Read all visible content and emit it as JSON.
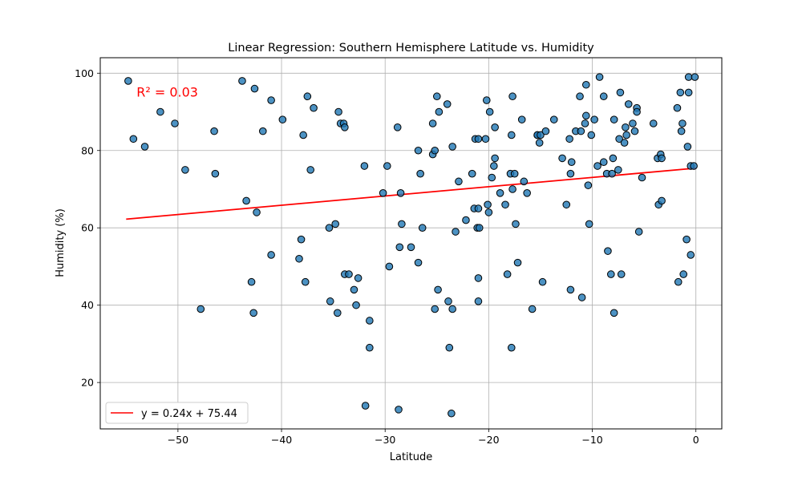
{
  "chart_data": {
    "type": "scatter",
    "title": "Linear Regression: Southern Hemisphere Latitude vs. Humidity",
    "xlabel": "Latitude",
    "ylabel": "Humidity (%)",
    "xlim": [
      -57.5,
      2.5
    ],
    "ylim": [
      8,
      104
    ],
    "xticks": [
      -50,
      -40,
      -30,
      -20,
      -10,
      0
    ],
    "xtick_labels": [
      "−50",
      "−40",
      "−30",
      "−20",
      "−10",
      "0"
    ],
    "yticks": [
      20,
      40,
      60,
      80,
      100
    ],
    "ytick_labels": [
      "20",
      "40",
      "60",
      "80",
      "100"
    ],
    "grid": true,
    "annotation": "R² = 0.03",
    "annotation_at": [
      -54,
      95
    ],
    "legend": {
      "placement": "lower-left",
      "entries": [
        "y = 0.24x + 75.44"
      ]
    },
    "regression": {
      "slope": 0.24,
      "intercept": 75.44,
      "x_range": [
        -55,
        0
      ],
      "label": "y = 0.24x + 75.44"
    },
    "colors": {
      "point_fill": "#1f77b4",
      "point_edge": "#000000",
      "line": "#ff0000",
      "grid": "#b0b0b0",
      "annotation": "#ff0000"
    },
    "points": [
      [
        -54.8,
        98
      ],
      [
        -54.3,
        83
      ],
      [
        -53.2,
        81
      ],
      [
        -51.7,
        90
      ],
      [
        -50.3,
        87
      ],
      [
        -49.3,
        75
      ],
      [
        -47.8,
        39
      ],
      [
        -46.5,
        85
      ],
      [
        -46.4,
        74
      ],
      [
        -43.8,
        98
      ],
      [
        -43.4,
        67
      ],
      [
        -42.9,
        46
      ],
      [
        -42.7,
        38
      ],
      [
        -42.6,
        96
      ],
      [
        -42.4,
        64
      ],
      [
        -41.8,
        85
      ],
      [
        -41.0,
        93
      ],
      [
        -41.0,
        53
      ],
      [
        -39.9,
        88
      ],
      [
        -38.3,
        52
      ],
      [
        -38.1,
        57
      ],
      [
        -37.9,
        84
      ],
      [
        -37.7,
        46
      ],
      [
        -37.5,
        94
      ],
      [
        -37.2,
        75
      ],
      [
        -36.9,
        91
      ],
      [
        -35.4,
        60
      ],
      [
        -35.3,
        41
      ],
      [
        -34.8,
        61
      ],
      [
        -34.6,
        38
      ],
      [
        -34.5,
        90
      ],
      [
        -34.3,
        87
      ],
      [
        -34.0,
        87
      ],
      [
        -33.9,
        48
      ],
      [
        -33.9,
        86
      ],
      [
        -33.5,
        48
      ],
      [
        -33.0,
        44
      ],
      [
        -32.8,
        40
      ],
      [
        -32.6,
        47
      ],
      [
        -32.0,
        76
      ],
      [
        -31.9,
        14
      ],
      [
        -31.5,
        36
      ],
      [
        -31.5,
        29
      ],
      [
        -30.2,
        69
      ],
      [
        -29.8,
        76
      ],
      [
        -29.6,
        50
      ],
      [
        -28.8,
        86
      ],
      [
        -28.7,
        13
      ],
      [
        -28.6,
        55
      ],
      [
        -28.5,
        69
      ],
      [
        -28.4,
        61
      ],
      [
        -27.5,
        55
      ],
      [
        -26.8,
        80
      ],
      [
        -26.8,
        51
      ],
      [
        -26.6,
        74
      ],
      [
        -26.4,
        60
      ],
      [
        -25.4,
        79
      ],
      [
        -25.4,
        87
      ],
      [
        -25.2,
        39
      ],
      [
        -25.2,
        80
      ],
      [
        -25.0,
        94
      ],
      [
        -24.8,
        90
      ],
      [
        -24.9,
        44
      ],
      [
        -24.0,
        92
      ],
      [
        -23.9,
        41
      ],
      [
        -23.8,
        29
      ],
      [
        -23.6,
        12
      ],
      [
        -23.5,
        81
      ],
      [
        -23.5,
        39
      ],
      [
        -23.2,
        59
      ],
      [
        -22.9,
        72
      ],
      [
        -22.2,
        62
      ],
      [
        -21.6,
        74
      ],
      [
        -21.4,
        65
      ],
      [
        -21.3,
        83
      ],
      [
        -21.1,
        60
      ],
      [
        -21.0,
        65
      ],
      [
        -21.0,
        83
      ],
      [
        -21.0,
        41
      ],
      [
        -21.0,
        47
      ],
      [
        -20.9,
        60
      ],
      [
        -20.3,
        83
      ],
      [
        -20.2,
        93
      ],
      [
        -20.1,
        66
      ],
      [
        -20.0,
        64
      ],
      [
        -19.9,
        90
      ],
      [
        -19.7,
        73
      ],
      [
        -19.5,
        76
      ],
      [
        -19.4,
        78
      ],
      [
        -19.4,
        86
      ],
      [
        -18.9,
        69
      ],
      [
        -18.4,
        66
      ],
      [
        -18.2,
        48
      ],
      [
        -17.9,
        74
      ],
      [
        -17.8,
        29
      ],
      [
        -17.8,
        84
      ],
      [
        -17.7,
        94
      ],
      [
        -17.7,
        70
      ],
      [
        -17.5,
        74
      ],
      [
        -17.4,
        61
      ],
      [
        -17.2,
        51
      ],
      [
        -16.8,
        88
      ],
      [
        -16.6,
        72
      ],
      [
        -16.3,
        69
      ],
      [
        -15.8,
        39
      ],
      [
        -15.3,
        84
      ],
      [
        -15.3,
        84
      ],
      [
        -15.1,
        82
      ],
      [
        -15.0,
        84
      ],
      [
        -14.8,
        46
      ],
      [
        -14.5,
        85
      ],
      [
        -13.7,
        88
      ],
      [
        -12.9,
        78
      ],
      [
        -12.5,
        66
      ],
      [
        -12.2,
        83
      ],
      [
        -12.1,
        74
      ],
      [
        -12.1,
        44
      ],
      [
        -12.0,
        77
      ],
      [
        -11.6,
        85
      ],
      [
        -11.2,
        94
      ],
      [
        -11.1,
        85
      ],
      [
        -11.0,
        42
      ],
      [
        -10.7,
        87
      ],
      [
        -10.6,
        97
      ],
      [
        -10.6,
        89
      ],
      [
        -10.4,
        71
      ],
      [
        -10.3,
        61
      ],
      [
        -10.1,
        84
      ],
      [
        -9.8,
        88
      ],
      [
        -9.5,
        76
      ],
      [
        -9.3,
        99
      ],
      [
        -8.9,
        94
      ],
      [
        -8.9,
        77
      ],
      [
        -8.6,
        74
      ],
      [
        -8.5,
        54
      ],
      [
        -8.2,
        48
      ],
      [
        -8.1,
        74
      ],
      [
        -8.0,
        78
      ],
      [
        -7.9,
        88
      ],
      [
        -7.9,
        38
      ],
      [
        -7.5,
        75
      ],
      [
        -7.4,
        83
      ],
      [
        -7.3,
        95
      ],
      [
        -7.2,
        48
      ],
      [
        -6.9,
        82
      ],
      [
        -6.8,
        86
      ],
      [
        -6.7,
        84
      ],
      [
        -6.5,
        92
      ],
      [
        -6.1,
        87
      ],
      [
        -5.9,
        85
      ],
      [
        -5.7,
        91
      ],
      [
        -5.7,
        90
      ],
      [
        -5.5,
        59
      ],
      [
        -5.2,
        73
      ],
      [
        -4.1,
        87
      ],
      [
        -3.7,
        78
      ],
      [
        -3.6,
        66
      ],
      [
        -3.4,
        79
      ],
      [
        -3.3,
        67
      ],
      [
        -3.3,
        78
      ],
      [
        -1.8,
        91
      ],
      [
        -1.7,
        46
      ],
      [
        -1.5,
        95
      ],
      [
        -1.4,
        85
      ],
      [
        -1.3,
        87
      ],
      [
        -1.2,
        48
      ],
      [
        -0.9,
        57
      ],
      [
        -0.8,
        81
      ],
      [
        -0.7,
        99
      ],
      [
        -0.7,
        95
      ],
      [
        -0.5,
        53
      ],
      [
        -0.5,
        76
      ],
      [
        -0.2,
        76
      ],
      [
        -0.1,
        99
      ]
    ]
  }
}
